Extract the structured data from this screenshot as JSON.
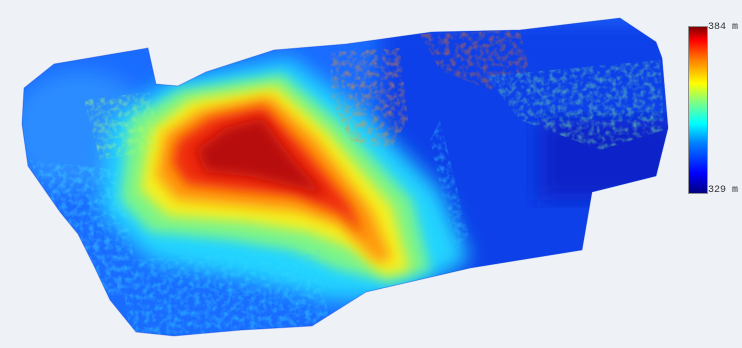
{
  "map": {
    "type": "elevation-heatmap",
    "colormap": "jet",
    "legend": {
      "max_label": "384 m",
      "min_label": "329 m",
      "max_value": 384,
      "min_value": 329,
      "unit": "m",
      "colors": [
        "#000080",
        "#0000ff",
        "#0080ff",
        "#00ffff",
        "#80ff80",
        "#ffff00",
        "#ff8000",
        "#ff0000",
        "#800000"
      ],
      "placement": "top-right"
    },
    "background": "#eef2f7"
  }
}
